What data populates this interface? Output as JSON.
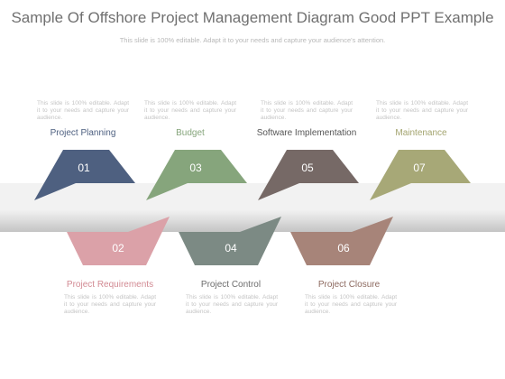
{
  "title": "Sample Of Offshore Project Management Diagram Good PPT Example",
  "subtitle": "This slide is 100% editable. Adapt it to your needs and capture your audience's attention.",
  "colors": {
    "band_light": "#f2f2f2",
    "band_dark": "#c4c4c4",
    "desc_text": "#c4c4c4"
  },
  "steps": [
    {
      "number": "01",
      "label": "Project Planning",
      "color": "#4e6080",
      "label_color": "#4e6080",
      "description": "This slide is 100% editable. Adapt it to your needs and capture your audience."
    },
    {
      "number": "02",
      "label": "Project Requirements",
      "color": "#dba1a8",
      "label_color": "#d28a93",
      "description": "This slide is 100% editable. Adapt it to your needs and capture your audience."
    },
    {
      "number": "03",
      "label": "Budget",
      "color": "#86a57c",
      "label_color": "#86a57c",
      "description": "This slide is 100% editable. Adapt it to your needs and capture your audience."
    },
    {
      "number": "04",
      "label": "Project Control",
      "color": "#7c8a84",
      "label_color": "#6d6d6d",
      "description": "This slide is 100% editable. Adapt it to your needs and capture your audience."
    },
    {
      "number": "05",
      "label": "Software Implementation",
      "color": "#766966",
      "label_color": "#555555",
      "description": "This slide is 100% editable. Adapt it to your needs and capture your audience."
    },
    {
      "number": "06",
      "label": "Project Closure",
      "color": "#a78479",
      "label_color": "#8d6a60",
      "description": "This slide is 100% editable. Adapt it to your needs and capture your audience."
    },
    {
      "number": "07",
      "label": "Maintenance",
      "color": "#a7a877",
      "label_color": "#a3a46f",
      "description": "This slide is 100% editable. Adapt it to your needs and capture your audience."
    }
  ]
}
